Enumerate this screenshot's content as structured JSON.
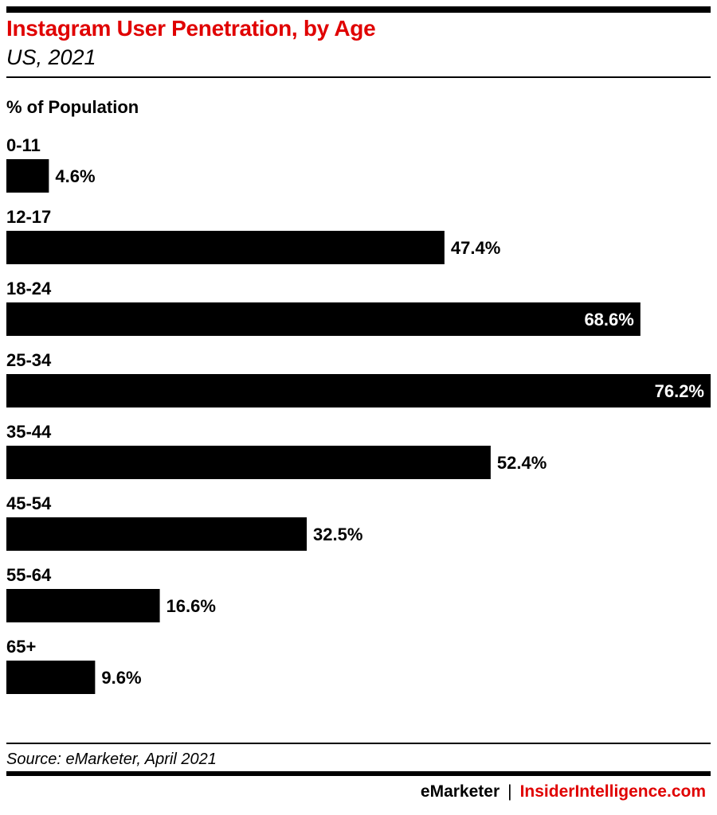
{
  "header": {
    "title": "Instagram User Penetration, by Age",
    "subtitle": "US, 2021",
    "unit_label": "% of Population"
  },
  "footer": {
    "source": "Source: eMarketer, April 2021",
    "brand_primary": "eMarketer",
    "brand_separator": "|",
    "brand_secondary": "InsiderIntelligence.com"
  },
  "colors": {
    "title": "#e00000",
    "bars": "#000000",
    "brand_secondary": "#e00000"
  },
  "chart_data": {
    "type": "bar",
    "orientation": "horizontal",
    "title": "Instagram User Penetration, by Age",
    "subtitle": "US, 2021",
    "ylabel": "% of Population",
    "categories": [
      "0-11",
      "12-17",
      "18-24",
      "25-34",
      "35-44",
      "45-54",
      "55-64",
      "65+"
    ],
    "values": [
      4.6,
      47.4,
      68.6,
      76.2,
      52.4,
      32.5,
      16.6,
      9.6
    ],
    "value_labels": [
      "4.6%",
      "47.4%",
      "68.6%",
      "76.2%",
      "52.4%",
      "32.5%",
      "16.6%",
      "9.6%"
    ],
    "xlim": [
      0,
      76.2
    ],
    "grid": false,
    "legend": "none"
  }
}
